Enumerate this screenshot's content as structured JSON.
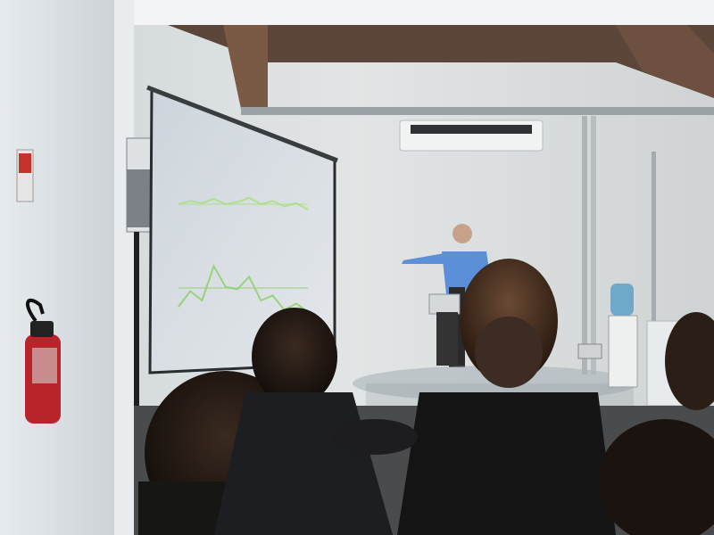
{
  "scene": {
    "description_free": true,
    "projection": {
      "slide_title": "",
      "series": [
        {
          "color": "#a8e080",
          "values": [
            0.6,
            0.66,
            0.62,
            0.7,
            0.6,
            0.64,
            0.72,
            0.6,
            0.66,
            0.56,
            0.62,
            0.5
          ]
        },
        {
          "color": "#8ed06a",
          "values": [
            0.3,
            0.55,
            0.4,
            0.95,
            0.62,
            0.58,
            0.78,
            0.4,
            0.48,
            0.25,
            0.35,
            0.22
          ]
        }
      ]
    },
    "colors": {
      "wall": "#d9dde0",
      "ceiling_beam": "#6b5040",
      "screen": "#d7dde2",
      "extinguisher": "#c0272d",
      "shirt": "#5b8fd8"
    }
  }
}
